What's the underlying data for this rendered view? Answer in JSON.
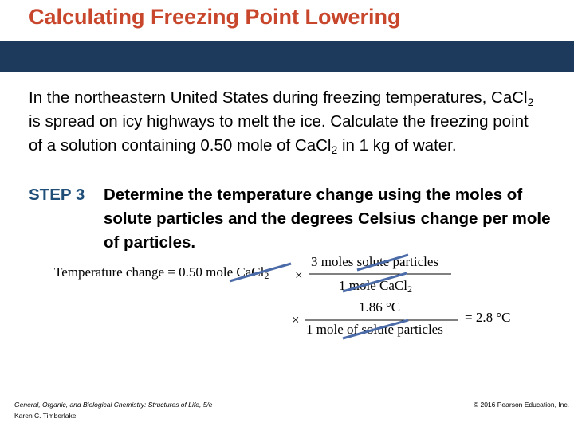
{
  "header": {
    "title": "Calculating Freezing Point Lowering"
  },
  "body": {
    "parts": [
      "In the northeastern United States during freezing temperatures, CaCl",
      "2",
      " is spread on icy highways to melt the ice. Calculate the freezing point of a solution containing 0.50 mole of CaCl",
      "2",
      " in 1 kg of water."
    ]
  },
  "step": {
    "label": "STEP 3",
    "text": "Determine the temperature change using the moles of solute particles and the degrees Celsius change per mole of particles."
  },
  "equation": {
    "lhs": "Temperature change = 0.50 mole CaCl",
    "lhs_sub": "2",
    "times": "×",
    "fraction_1": {
      "numerator": "3 moles solute particles",
      "denominator": "1 mole CaCl",
      "denominator_sub": "2"
    },
    "fraction_2": {
      "numerator": "1.86 °C",
      "denominator": "1 mole of solute particles"
    },
    "result": "= 2.8 °C"
  },
  "footer": {
    "book": "General, Organic, and Biological Chemistry: Structures of Life, 5/e",
    "author": "Karen C. Timberlake",
    "copyright": "© 2016 Pearson Education, Inc."
  }
}
